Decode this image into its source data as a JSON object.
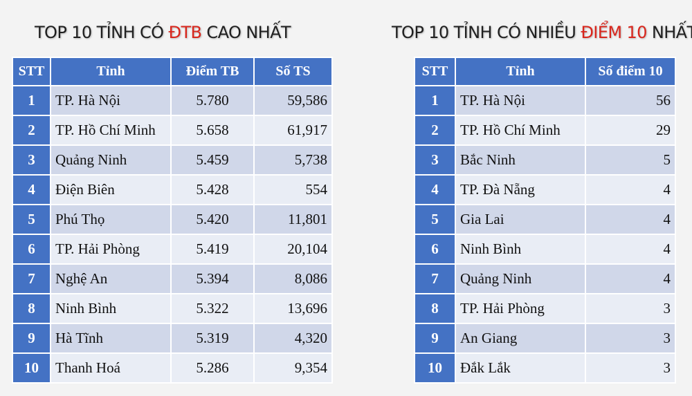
{
  "left": {
    "title_pre": "TOP 10 TỈNH CÓ ",
    "title_hl": "ĐTB",
    "title_post": " CAO NHẤT",
    "headers": [
      "STT",
      "Tỉnh",
      "Điểm TB",
      "Số TS"
    ],
    "rows": [
      {
        "stt": "1",
        "name": "TP. Hà Nội",
        "score": "5.780",
        "count": "59,586"
      },
      {
        "stt": "2",
        "name": "TP. Hồ Chí Minh",
        "score": "5.658",
        "count": "61,917"
      },
      {
        "stt": "3",
        "name": "Quảng Ninh",
        "score": "5.459",
        "count": "5,738"
      },
      {
        "stt": "4",
        "name": "Điện Biên",
        "score": "5.428",
        "count": "554"
      },
      {
        "stt": "5",
        "name": "Phú Thọ",
        "score": "5.420",
        "count": "11,801"
      },
      {
        "stt": "6",
        "name": "TP. Hải Phòng",
        "score": "5.419",
        "count": "20,104"
      },
      {
        "stt": "7",
        "name": "Nghệ An",
        "score": "5.394",
        "count": "8,086"
      },
      {
        "stt": "8",
        "name": "Ninh Bình",
        "score": "5.322",
        "count": "13,696"
      },
      {
        "stt": "9",
        "name": "Hà Tĩnh",
        "score": "5.319",
        "count": "4,320"
      },
      {
        "stt": "10",
        "name": "Thanh Hoá",
        "score": "5.286",
        "count": "9,354"
      }
    ]
  },
  "right": {
    "title_pre": "TOP 10 TỈNH CÓ NHIỀU ",
    "title_hl": "ĐIỂM 10",
    "title_post": " NHẤT",
    "headers": [
      "STT",
      "Tỉnh",
      "Số điểm 10"
    ],
    "rows": [
      {
        "stt": "1",
        "name": "TP. Hà Nội",
        "count": "56"
      },
      {
        "stt": "2",
        "name": "TP. Hồ Chí Minh",
        "count": "29"
      },
      {
        "stt": "3",
        "name": "Bắc Ninh",
        "count": "5"
      },
      {
        "stt": "4",
        "name": "TP. Đà Nẵng",
        "count": "4"
      },
      {
        "stt": "5",
        "name": "Gia Lai",
        "count": "4"
      },
      {
        "stt": "6",
        "name": "Ninh Bình",
        "count": "4"
      },
      {
        "stt": "7",
        "name": "Quảng Ninh",
        "count": "4"
      },
      {
        "stt": "8",
        "name": "TP. Hải Phòng",
        "count": "3"
      },
      {
        "stt": "9",
        "name": "An Giang",
        "count": "3"
      },
      {
        "stt": "10",
        "name": "Đắk Lắk",
        "count": "3"
      }
    ]
  },
  "colors": {
    "header_bg": "#4472c4",
    "row_odd": "#d0d7e9",
    "row_even": "#e9edf5",
    "highlight": "#d9261c"
  }
}
